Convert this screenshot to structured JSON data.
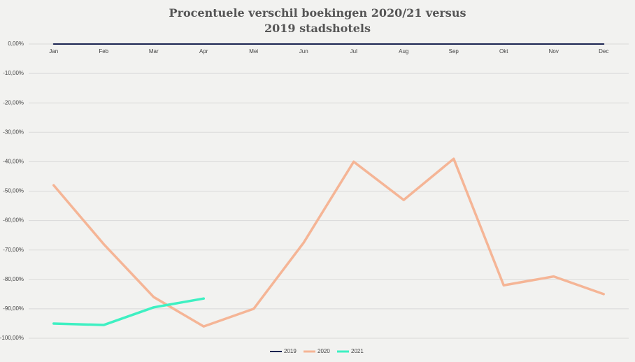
{
  "chart_data": {
    "type": "line",
    "title": "Procentuele verschil boekingen 2020/21 versus 2019 stadshotels",
    "categories": [
      "Jan",
      "Feb",
      "Mar",
      "Apr",
      "Mei",
      "Jun",
      "Jul",
      "Aug",
      "Sep",
      "Okt",
      "Nov",
      "Dec"
    ],
    "series": [
      {
        "name": "2019",
        "color": "#1b2451",
        "values": [
          0,
          0,
          0,
          0,
          0,
          0,
          0,
          0,
          0,
          0,
          0,
          0
        ]
      },
      {
        "name": "2020",
        "color": "#f5b596",
        "values": [
          -48,
          -68,
          -86,
          -96,
          -90,
          -67.5,
          -40,
          -53,
          -39,
          -82,
          -79,
          -85
        ]
      },
      {
        "name": "2021",
        "color": "#3ef0c2",
        "values": [
          -95,
          -95.5,
          -89.5,
          -86.5,
          null,
          null,
          null,
          null,
          null,
          null,
          null,
          null
        ]
      }
    ],
    "ylim": [
      -100,
      0
    ],
    "yticks": [
      {
        "value": 0,
        "label": "0,00%"
      },
      {
        "value": -10,
        "label": "-10,00%"
      },
      {
        "value": -20,
        "label": "-20,00%"
      },
      {
        "value": -30,
        "label": "-30,00%"
      },
      {
        "value": -40,
        "label": "-40,00%"
      },
      {
        "value": -50,
        "label": "-50,00%"
      },
      {
        "value": -60,
        "label": "-60,00%"
      },
      {
        "value": -70,
        "label": "-70,00%"
      },
      {
        "value": -80,
        "label": "-80,00%"
      },
      {
        "value": -90,
        "label": "-90,00%"
      },
      {
        "value": -100,
        "label": "-100,00%"
      }
    ],
    "grid": true,
    "legend": "bottom"
  }
}
